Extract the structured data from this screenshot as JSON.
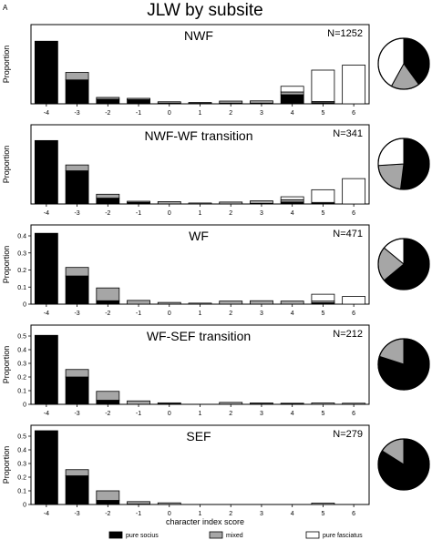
{
  "figure": {
    "panel_letter": "A",
    "title": "JLW by subsite",
    "xlabel": "character index score",
    "ylabel": "Proportion"
  },
  "legend": [
    {
      "label": "pure socius",
      "color": "#000000"
    },
    {
      "label": "mixed",
      "color": "#a6a6a6"
    },
    {
      "label": "pure fasciatus",
      "color": "#ffffff"
    }
  ],
  "chart_data": [
    {
      "type": "bar",
      "stacked": true,
      "title": "NWF",
      "n_label": "N=1252",
      "ylabel": "Proportion",
      "xlabel": "character index score",
      "categories": [
        "-4",
        "-3",
        "-2",
        "-1",
        "0",
        "1",
        "2",
        "3",
        "4",
        "5",
        "6"
      ],
      "ylim": [
        0,
        0.3
      ],
      "yticks": [],
      "series": [
        {
          "name": "pure socius",
          "values": [
            0.275,
            0.105,
            0.02,
            0.018,
            0.003,
            0.002,
            0.003,
            0.003,
            0.04,
            0.005,
            0
          ]
        },
        {
          "name": "mixed",
          "values": [
            0,
            0.033,
            0.008,
            0.006,
            0.006,
            0.004,
            0.009,
            0.01,
            0.012,
            0.005,
            0
          ]
        },
        {
          "name": "pure fasciatus",
          "values": [
            0,
            0,
            0,
            0,
            0,
            0,
            0,
            0,
            0.025,
            0.138,
            0.17
          ]
        }
      ],
      "pie": [
        {
          "name": "pure socius",
          "value": 0.4
        },
        {
          "name": "mixed",
          "value": 0.18
        },
        {
          "name": "pure fasciatus",
          "value": 0.42
        }
      ]
    },
    {
      "type": "bar",
      "stacked": true,
      "title": "NWF-WF transition",
      "n_label": "N=341",
      "ylabel": "Proportion",
      "xlabel": "character index score",
      "categories": [
        "-4",
        "-3",
        "-2",
        "-1",
        "0",
        "1",
        "2",
        "3",
        "4",
        "5",
        "6"
      ],
      "ylim": [
        0,
        0.35
      ],
      "yticks": [],
      "series": [
        {
          "name": "pure socius",
          "values": [
            0.325,
            0.17,
            0.03,
            0.008,
            0,
            0,
            0,
            0.003,
            0.01,
            0.003,
            0
          ]
        },
        {
          "name": "mixed",
          "values": [
            0,
            0.03,
            0.02,
            0.006,
            0.012,
            0.005,
            0.01,
            0.013,
            0.012,
            0.005,
            0
          ]
        },
        {
          "name": "pure fasciatus",
          "values": [
            0,
            0,
            0,
            0,
            0,
            0,
            0,
            0,
            0.015,
            0.065,
            0.13
          ]
        }
      ],
      "pie": [
        {
          "name": "pure socius",
          "value": 0.52
        },
        {
          "name": "mixed",
          "value": 0.22
        },
        {
          "name": "pure fasciatus",
          "value": 0.26
        }
      ]
    },
    {
      "type": "bar",
      "stacked": true,
      "title": "WF",
      "n_label": "N=471",
      "ylabel": "Proportion",
      "xlabel": "character index score",
      "categories": [
        "-4",
        "-3",
        "-2",
        "-1",
        "0",
        "1",
        "2",
        "3",
        "4",
        "5",
        "6"
      ],
      "ylim": [
        0,
        0.4
      ],
      "yticks": [
        "0",
        "0.1",
        "0.2",
        "0.3",
        "0.4"
      ],
      "series": [
        {
          "name": "pure socius",
          "values": [
            0.415,
            0.165,
            0.02,
            0,
            0,
            0,
            0,
            0,
            0,
            0.008,
            0
          ]
        },
        {
          "name": "mixed",
          "values": [
            0,
            0.05,
            0.075,
            0.022,
            0.01,
            0.006,
            0.018,
            0.02,
            0.018,
            0.01,
            0
          ]
        },
        {
          "name": "pure fasciatus",
          "values": [
            0,
            0,
            0,
            0,
            0,
            0,
            0,
            0,
            0,
            0.04,
            0.045
          ]
        }
      ],
      "pie": [
        {
          "name": "pure socius",
          "value": 0.64
        },
        {
          "name": "mixed",
          "value": 0.22
        },
        {
          "name": "pure fasciatus",
          "value": 0.14
        }
      ]
    },
    {
      "type": "bar",
      "stacked": true,
      "title": "WF-SEF transition",
      "n_label": "N=212",
      "ylabel": "Proportion",
      "xlabel": "character index score",
      "categories": [
        "-4",
        "-3",
        "-2",
        "-1",
        "0",
        "1",
        "2",
        "3",
        "4",
        "5",
        "6"
      ],
      "ylim": [
        0,
        0.5
      ],
      "yticks": [
        "0",
        "0.1",
        "0.2",
        "0.3",
        "0.4",
        "0.5"
      ],
      "series": [
        {
          "name": "pure socius",
          "values": [
            0.505,
            0.2,
            0.03,
            0,
            0.004,
            0,
            0,
            0.003,
            0.003,
            0,
            0
          ]
        },
        {
          "name": "mixed",
          "values": [
            0,
            0.055,
            0.065,
            0.025,
            0.007,
            0,
            0.014,
            0.007,
            0.005,
            0.01,
            0.008
          ]
        },
        {
          "name": "pure fasciatus",
          "values": [
            0,
            0,
            0,
            0,
            0,
            0,
            0,
            0,
            0,
            0,
            0
          ]
        }
      ],
      "pie": [
        {
          "name": "pure socius",
          "value": 0.8
        },
        {
          "name": "mixed",
          "value": 0.2
        },
        {
          "name": "pure fasciatus",
          "value": 0.0
        }
      ]
    },
    {
      "type": "bar",
      "stacked": true,
      "title": "SEF",
      "n_label": "N=279",
      "ylabel": "Proportion",
      "xlabel": "character index score",
      "categories": [
        "-4",
        "-3",
        "-2",
        "-1",
        "0",
        "1",
        "2",
        "3",
        "4",
        "5",
        "6"
      ],
      "ylim": [
        0,
        0.5
      ],
      "yticks": [
        "0",
        "0.1",
        "0.2",
        "0.3",
        "0.4",
        "0.5"
      ],
      "series": [
        {
          "name": "pure socius",
          "values": [
            0.54,
            0.21,
            0.03,
            0.003,
            0,
            0,
            0,
            0,
            0,
            0,
            0
          ]
        },
        {
          "name": "mixed",
          "values": [
            0,
            0.045,
            0.07,
            0.018,
            0.012,
            0,
            0,
            0,
            0,
            0.01,
            0
          ]
        },
        {
          "name": "pure fasciatus",
          "values": [
            0,
            0,
            0,
            0,
            0,
            0,
            0,
            0,
            0,
            0,
            0
          ]
        }
      ],
      "pie": [
        {
          "name": "pure socius",
          "value": 0.84
        },
        {
          "name": "mixed",
          "value": 0.16
        },
        {
          "name": "pure fasciatus",
          "value": 0.0
        }
      ]
    }
  ]
}
